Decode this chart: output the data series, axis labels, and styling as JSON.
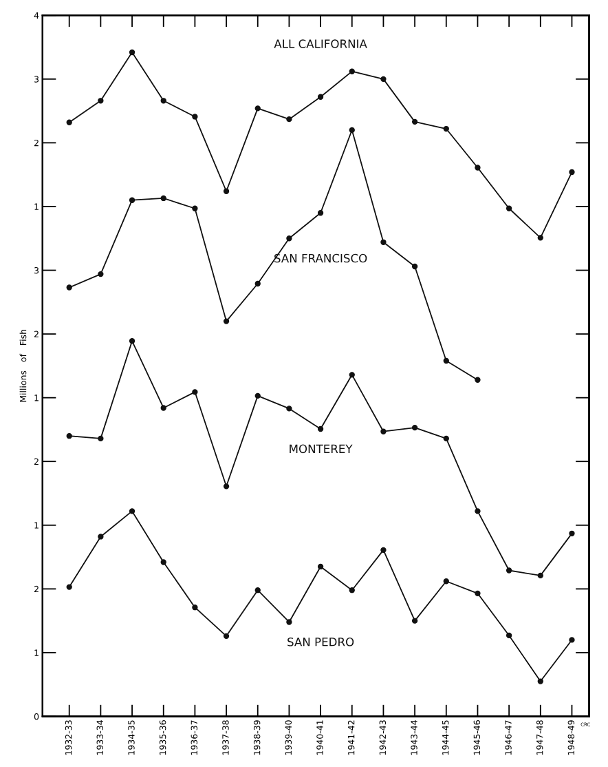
{
  "chart_data": [
    {
      "type": "line",
      "categories": [
        "1932-33",
        "1933-34",
        "1934-35",
        "1935-36",
        "1936-37",
        "1937-38",
        "1938-39",
        "1939-40",
        "1940-41",
        "1941-42",
        "1942-43",
        "1943-44",
        "1944-45",
        "1945-46",
        "1946-47",
        "1947-48",
        "1948-49"
      ],
      "series": [
        {
          "name": "ALL CALIFORNIA",
          "color": "#111111",
          "values": [
            2.32,
            2.66,
            3.42,
            2.66,
            2.41,
            1.24,
            2.54,
            2.37,
            2.72,
            3.12,
            3.0,
            2.33,
            2.22,
            1.61,
            0.97,
            0.51,
            1.54
          ]
        }
      ],
      "ylim": [
        -7,
        4
      ],
      "yticks": [
        1,
        2,
        3,
        4
      ],
      "tick_labels": "y",
      "marker": "circle",
      "line_style": "solid",
      "legend": false
    },
    {
      "type": "line",
      "categories": [
        "1932-33",
        "1933-34",
        "1934-35",
        "1935-36",
        "1936-37",
        "1937-38",
        "1938-39",
        "1939-40",
        "1940-41",
        "1941-42",
        "1942-43",
        "1943-44",
        "1944-45",
        "1945-46",
        "1946-47",
        "1947-48",
        "1948-49"
      ],
      "series": [
        {
          "name": "SAN FRANCISCO",
          "color": "#111111",
          "values": [
            2.73,
            2.94,
            4.1,
            4.13,
            3.97,
            2.2,
            2.79,
            3.5,
            3.9,
            5.2,
            3.44,
            3.06,
            1.58,
            1.28,
            null,
            null,
            null
          ]
        }
      ],
      "ylim": [
        -4,
        7
      ],
      "yticks": [
        1,
        2,
        3
      ],
      "tick_labels": "y",
      "marker": "circle",
      "line_style": "solid",
      "legend": false
    },
    {
      "type": "line",
      "categories": [
        "1932-33",
        "1933-34",
        "1934-35",
        "1935-36",
        "1936-37",
        "1937-38",
        "1938-39",
        "1939-40",
        "1940-41",
        "1941-42",
        "1942-43",
        "1943-44",
        "1944-45",
        "1945-46",
        "1946-47",
        "1947-48",
        "1948-49"
      ],
      "series": [
        {
          "name": "MONTEREY",
          "color": "#111111",
          "values": [
            2.4,
            2.36,
            3.89,
            2.84,
            3.09,
            1.61,
            3.03,
            2.83,
            2.51,
            3.36,
            2.47,
            2.53,
            2.36,
            1.22,
            0.29,
            0.21,
            0.87
          ]
        }
      ],
      "ylim": [
        -2,
        9
      ],
      "yticks": [
        1,
        2
      ],
      "tick_labels": "y",
      "marker": "circle",
      "line_style": "solid",
      "legend": false
    },
    {
      "type": "line",
      "ylabel": "Millions   of   Fish",
      "categories": [
        "1932-33",
        "1933-34",
        "1934-35",
        "1935-36",
        "1936-37",
        "1937-38",
        "1938-39",
        "1939-40",
        "1940-41",
        "1941-42",
        "1942-43",
        "1943-44",
        "1944-45",
        "1945-46",
        "1946-47",
        "1947-48",
        "1948-49"
      ],
      "series": [
        {
          "name": "SAN PEDRO",
          "color": "#111111",
          "values": [
            2.03,
            2.82,
            3.22,
            2.42,
            1.71,
            1.26,
            1.98,
            1.48,
            2.35,
            1.98,
            2.61,
            1.5,
            2.12,
            1.93,
            1.27,
            0.55,
            1.2
          ]
        }
      ],
      "ylim": [
        0,
        11
      ],
      "yticks": [
        0,
        1,
        2
      ],
      "marker": "circle",
      "line_style": "solid",
      "legend": false,
      "annotations": [
        "CRC"
      ]
    }
  ]
}
